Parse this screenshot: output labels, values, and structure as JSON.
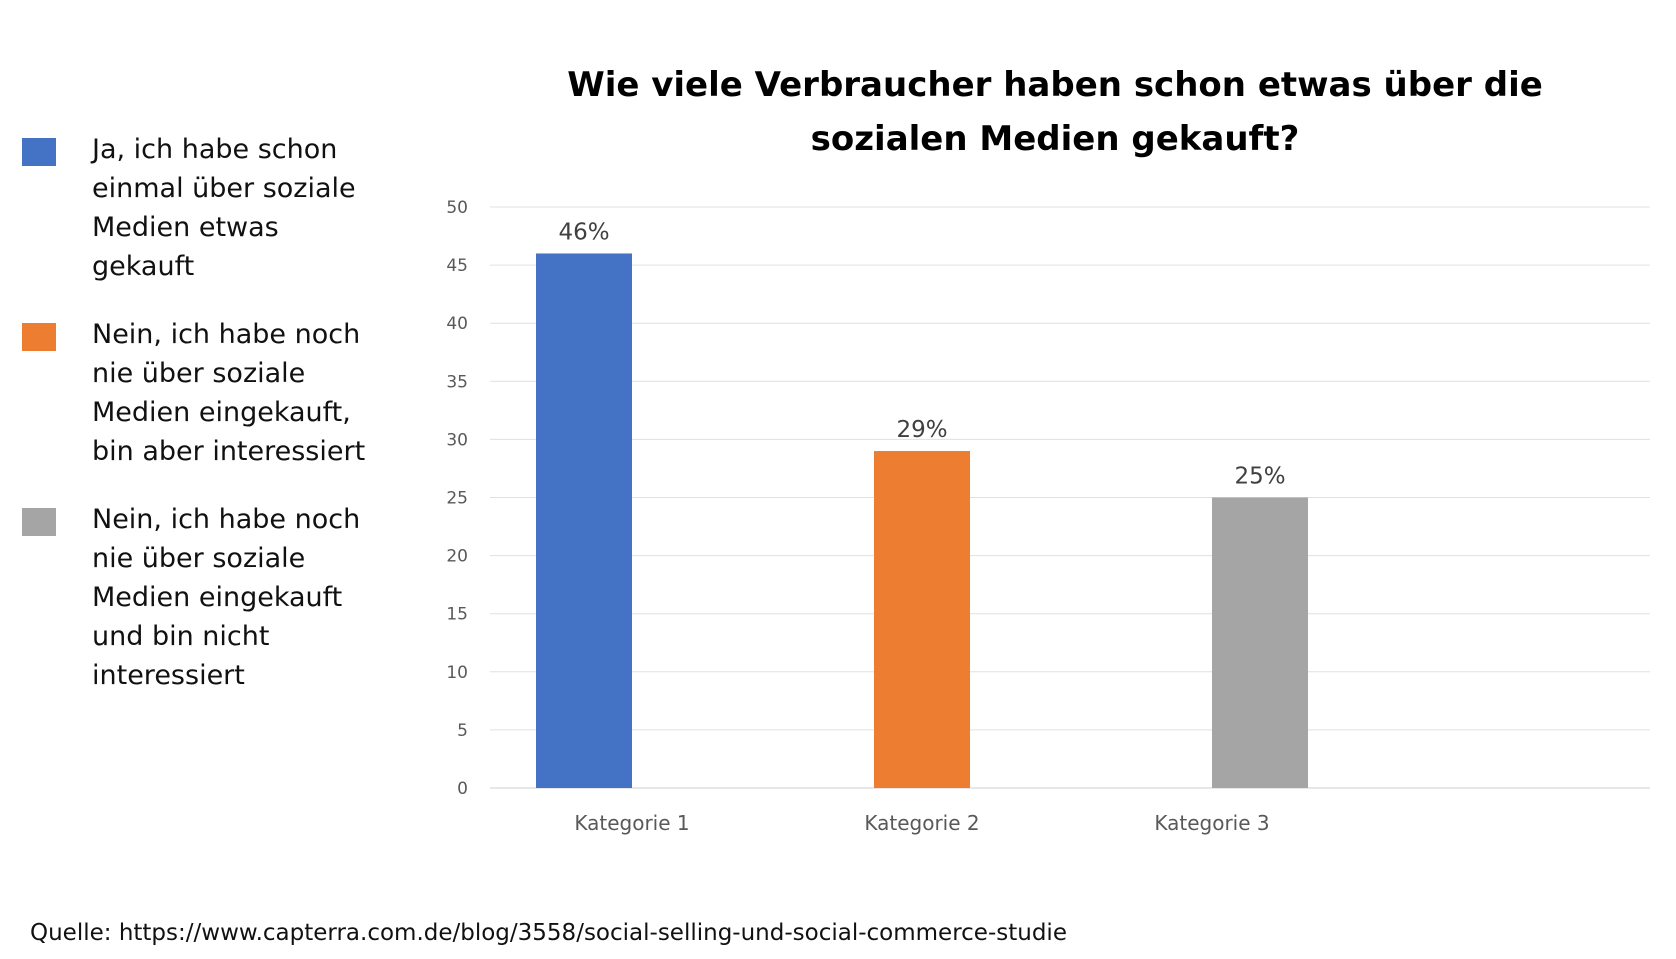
{
  "chart_data": {
    "type": "bar",
    "title": "Wie viele Verbraucher haben schon etwas über die sozialen Medien gekauft?",
    "categories": [
      "Kategorie 1",
      "Kategorie 2",
      "Kategorie 3"
    ],
    "series": [
      {
        "name": "Ja, ich habe schon einmal über soziale Medien etwas gekauft",
        "color": "#4472C4",
        "values": [
          46,
          null,
          null
        ],
        "data_label": "46%"
      },
      {
        "name": "Nein, ich habe noch nie über soziale Medien eingekauft, bin aber interessiert",
        "color": "#ED7D31",
        "values": [
          null,
          29,
          null
        ],
        "data_label": "29%"
      },
      {
        "name": "Nein, ich habe noch nie über soziale Medien eingekauft und bin nicht interessiert",
        "color": "#A5A5A5",
        "values": [
          null,
          null,
          25
        ],
        "data_label": "25%"
      }
    ],
    "ylim": [
      0,
      50
    ],
    "yticks": [
      0,
      5,
      10,
      15,
      20,
      25,
      30,
      35,
      40,
      45,
      50
    ],
    "grid": true,
    "legend_position": "left"
  },
  "source_text": "Quelle: https://www.capterra.com.de/blog/3558/social-selling-und-social-commerce-studie"
}
